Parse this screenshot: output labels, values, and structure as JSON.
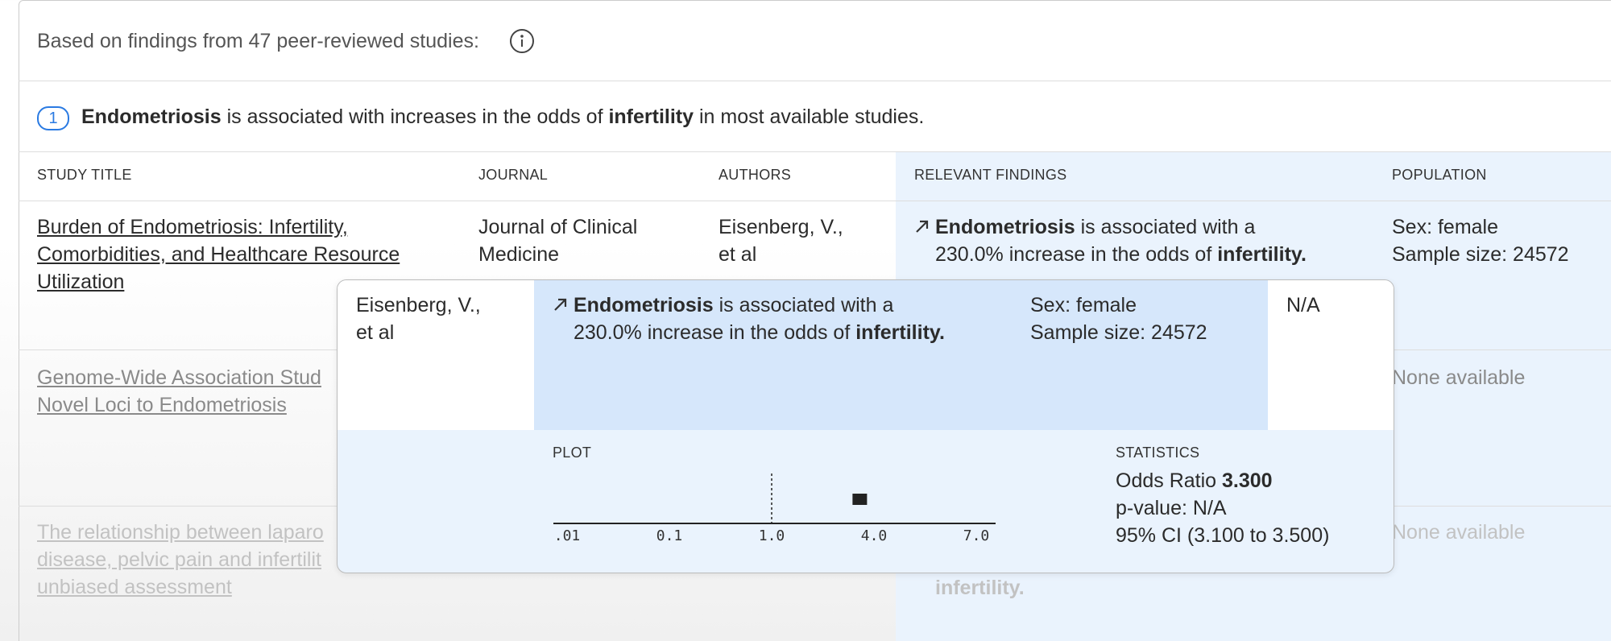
{
  "header": {
    "text": "Based on findings from 47 peer-reviewed studies:"
  },
  "claim": {
    "number": "1",
    "parts": [
      "Endometriosis",
      " is associated with increases in the odds of ",
      "infertility",
      " in most available studies."
    ]
  },
  "table": {
    "columns": [
      "STUDY TITLE",
      "JOURNAL",
      "AUTHORS",
      "RELEVANT FINDINGS",
      "POPULATION"
    ],
    "rows": [
      {
        "title": [
          "Burden of Endometriosis: Infertility,",
          "Comorbidities, and Healthcare Resource",
          "Utilization"
        ],
        "journal": [
          "Journal of Clinical",
          "Medicine"
        ],
        "authors": [
          "Eisenberg, V.,",
          "et al"
        ],
        "findings": [
          "Endometriosis",
          " is associated with a",
          "230.0% increase in the odds of ",
          "infertility."
        ],
        "population": [
          "Sex: female",
          "Sample size: 24572"
        ]
      },
      {
        "title": [
          "Genome-Wide Association Stud",
          "Novel Loci to Endometriosis"
        ],
        "population": [
          "None available"
        ]
      },
      {
        "title": [
          "The relationship between laparo",
          "disease, pelvic pain and infertilit",
          "unbiased assessment"
        ],
        "findings_tail": "infertility.",
        "population": [
          "None available"
        ]
      }
    ]
  },
  "popup": {
    "authors": [
      "Eisenberg, V.,",
      "et al"
    ],
    "findings": [
      "Endometriosis",
      " is associated with a",
      "230.0% increase in the odds of ",
      "infertility."
    ],
    "population": [
      "Sex: female",
      "Sample size: 24572"
    ],
    "extra": "N/A",
    "plot": {
      "label": "PLOT",
      "xticks": [
        {
          "value": 0.01,
          "label": ".01"
        },
        0.1,
        {
          "value": 1,
          "label": "1.0"
        },
        {
          "value": 4,
          "label": "4.0"
        },
        {
          "value": 7,
          "label": "7.0"
        }
      ],
      "reference": 1,
      "odds_ratio": 3.3,
      "ci": [
        3.1,
        3.5
      ]
    },
    "statistics": {
      "label": "STATISTICS",
      "odds_ratio_label": "Odds Ratio",
      "odds_ratio": "3.300",
      "p_value": "p-value: N/A",
      "ci": "95% CI (3.100 to 3.500)"
    }
  }
}
